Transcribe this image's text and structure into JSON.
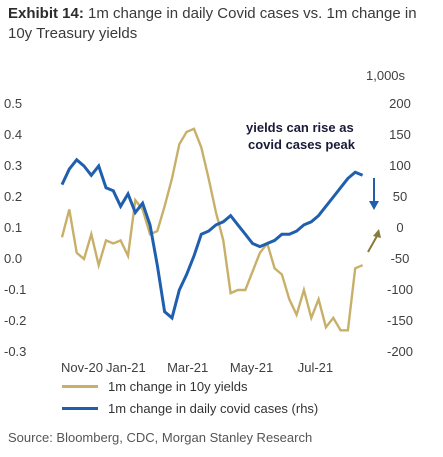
{
  "title": {
    "exhibit": "Exhibit 14:",
    "text": "1m change in daily Covid cases vs. 1m change in 10y Treasury yields"
  },
  "source": "Source: Bloomberg, CDC, Morgan Stanley Research",
  "colors": {
    "yields": "#c8b06a",
    "cases": "#1f5fae",
    "arrow_down": "#1f5fae",
    "arrow_up": "#8a7a3a"
  },
  "chart_data": {
    "type": "line",
    "y_left": {
      "ticks": [
        "0.5",
        "0.4",
        "0.3",
        "0.2",
        "0.1",
        "0.0",
        "-0.1",
        "-0.2",
        "-0.3"
      ],
      "ylim": [
        -0.3,
        0.5
      ]
    },
    "y_right": {
      "unit_label": "1,000s",
      "ticks": [
        "200",
        "150",
        "100",
        "50",
        "0",
        "-50",
        "-100",
        "-150",
        "-200"
      ],
      "ylim": [
        -200,
        200
      ]
    },
    "x_ticks": [
      "Nov-20",
      "Jan-21",
      "Mar-21",
      "May-21",
      "Jul-21"
    ],
    "annotation": [
      "yields can rise as",
      "covid cases peak"
    ],
    "series": [
      {
        "name": "1m change in 10y yields",
        "axis": "left",
        "x": [
          "2020-11-01",
          "2020-11-08",
          "2020-11-15",
          "2020-11-22",
          "2020-11-29",
          "2020-12-06",
          "2020-12-13",
          "2020-12-20",
          "2020-12-27",
          "2021-01-03",
          "2021-01-10",
          "2021-01-17",
          "2021-01-24",
          "2021-01-31",
          "2021-02-07",
          "2021-02-14",
          "2021-02-21",
          "2021-02-28",
          "2021-03-07",
          "2021-03-14",
          "2021-03-21",
          "2021-03-28",
          "2021-04-04",
          "2021-04-11",
          "2021-04-18",
          "2021-04-25",
          "2021-05-02",
          "2021-05-09",
          "2021-05-16",
          "2021-05-23",
          "2021-05-30",
          "2021-06-06",
          "2021-06-13",
          "2021-06-20",
          "2021-06-27",
          "2021-07-04",
          "2021-07-11",
          "2021-07-18",
          "2021-07-25",
          "2021-08-01",
          "2021-08-08",
          "2021-08-15"
        ],
        "values": [
          0.07,
          0.16,
          0.02,
          0.0,
          0.08,
          -0.02,
          0.06,
          0.05,
          0.06,
          0.01,
          0.19,
          0.16,
          0.08,
          0.09,
          0.17,
          0.26,
          0.37,
          0.41,
          0.42,
          0.36,
          0.26,
          0.15,
          0.06,
          -0.11,
          -0.1,
          -0.1,
          -0.04,
          0.02,
          0.05,
          -0.03,
          -0.05,
          -0.13,
          -0.18,
          -0.1,
          -0.19,
          -0.13,
          -0.22,
          -0.19,
          -0.23,
          -0.23,
          -0.03,
          -0.02
        ]
      },
      {
        "name": "1m change in daily covid cases (rhs)",
        "axis": "right",
        "x": [
          "2020-11-01",
          "2020-11-08",
          "2020-11-15",
          "2020-11-22",
          "2020-11-29",
          "2020-12-06",
          "2020-12-13",
          "2020-12-20",
          "2020-12-27",
          "2021-01-03",
          "2021-01-10",
          "2021-01-17",
          "2021-01-24",
          "2021-01-31",
          "2021-02-07",
          "2021-02-14",
          "2021-02-21",
          "2021-02-28",
          "2021-03-07",
          "2021-03-14",
          "2021-03-21",
          "2021-03-28",
          "2021-04-04",
          "2021-04-11",
          "2021-04-18",
          "2021-04-25",
          "2021-05-02",
          "2021-05-09",
          "2021-05-16",
          "2021-05-23",
          "2021-05-30",
          "2021-06-06",
          "2021-06-13",
          "2021-06-20",
          "2021-06-27",
          "2021-07-04",
          "2021-07-11",
          "2021-07-18",
          "2021-07-25",
          "2021-08-01",
          "2021-08-08",
          "2021-08-15"
        ],
        "values": [
          70,
          95,
          110,
          100,
          85,
          100,
          65,
          60,
          35,
          55,
          25,
          40,
          5,
          -60,
          -135,
          -145,
          -100,
          -75,
          -45,
          -10,
          -5,
          5,
          10,
          20,
          5,
          -10,
          -25,
          -30,
          -25,
          -20,
          -10,
          -10,
          -5,
          5,
          10,
          20,
          35,
          50,
          65,
          80,
          90,
          85
        ]
      }
    ]
  }
}
